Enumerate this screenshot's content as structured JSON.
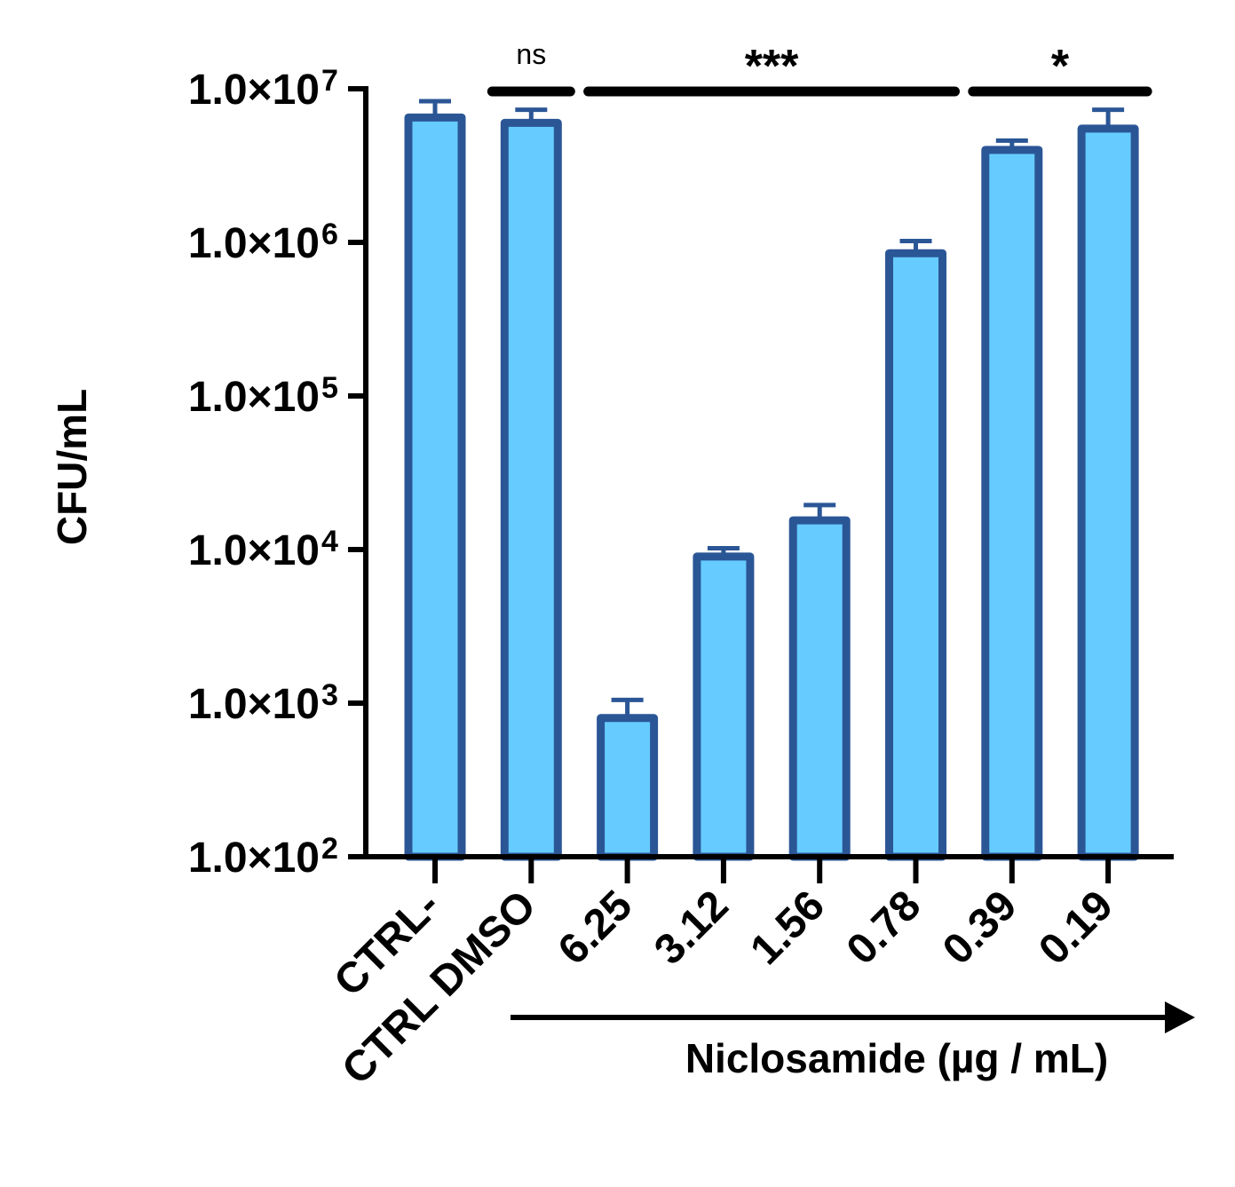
{
  "chart_data": {
    "type": "bar",
    "ylabel": "CFU/mL",
    "xlabel": "Niclosamide (µg / mL)",
    "y_scale": "log",
    "ylim": [
      100,
      10000000
    ],
    "y_ticks": [
      {
        "value": 100,
        "mantissa": "1.0×10",
        "exponent": "2"
      },
      {
        "value": 1000,
        "mantissa": "1.0×10",
        "exponent": "3"
      },
      {
        "value": 10000,
        "mantissa": "1.0×10",
        "exponent": "4"
      },
      {
        "value": 100000,
        "mantissa": "1.0×10",
        "exponent": "5"
      },
      {
        "value": 1000000,
        "mantissa": "1.0×10",
        "exponent": "6"
      },
      {
        "value": 10000000,
        "mantissa": "1.0×10",
        "exponent": "7"
      }
    ],
    "categories": [
      "CTRL-",
      "CTRL DMSO",
      "6.25",
      "3.12",
      "1.56",
      "0.78",
      "0.39",
      "0.19"
    ],
    "values": [
      6500000,
      6000000,
      800,
      9000,
      15500,
      850000,
      4000000,
      5500000
    ],
    "error_upper": [
      8300000,
      7300000,
      1050,
      10200,
      19500,
      1020000,
      4600000,
      7300000
    ],
    "bar_fill": "#66CCFF",
    "bar_stroke": "#2B5696",
    "axis_color": "#000000",
    "grid": false,
    "legend": "none",
    "significance": [
      {
        "label": "ns",
        "from": 1,
        "to": 1
      },
      {
        "label": "***",
        "from": 2,
        "to": 5
      },
      {
        "label": "*",
        "from": 6,
        "to": 7
      }
    ]
  }
}
